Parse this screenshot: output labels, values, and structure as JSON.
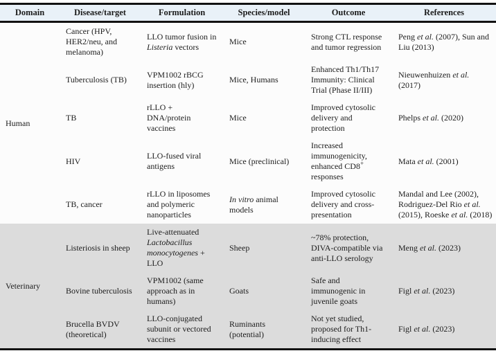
{
  "colors": {
    "header_bg": "#e9f1f8",
    "human_section_bg": "#fcfcfc",
    "veterinary_section_bg": "#dcdcdc",
    "border": "#121212",
    "text": "#1c1c1c"
  },
  "table": {
    "headers": [
      "Domain",
      "Disease/target",
      "Formulation",
      "Species/model",
      "Outcome",
      "References"
    ],
    "sections": [
      {
        "domain": "Human",
        "rows": [
          {
            "disease": [
              {
                "t": "Cancer (HPV, HER2/neu, and melanoma)"
              }
            ],
            "formulation": [
              {
                "t": "LLO tumor fusion in "
              },
              {
                "t": "Listeria",
                "i": true
              },
              {
                "t": " vectors"
              }
            ],
            "species": [
              {
                "t": "Mice"
              }
            ],
            "outcome": [
              {
                "t": "Strong CTL response and tumor regression"
              }
            ],
            "references": [
              {
                "t": "Peng "
              },
              {
                "t": "et al.",
                "i": true
              },
              {
                "t": " (2007), Sun and Liu (2013)"
              }
            ]
          },
          {
            "disease": [
              {
                "t": "Tuberculosis (TB)"
              }
            ],
            "formulation": [
              {
                "t": "VPM1002 rBCG insertion (hly)"
              }
            ],
            "species": [
              {
                "t": "Mice, Humans"
              }
            ],
            "outcome": [
              {
                "t": "Enhanced Th1/Th17 Immunity: Clinical Trial (Phase II/III)"
              }
            ],
            "references": [
              {
                "t": "Nieuwenhuizen "
              },
              {
                "t": "et al.",
                "i": true
              },
              {
                "t": " (2017)"
              }
            ]
          },
          {
            "disease": [
              {
                "t": "TB"
              }
            ],
            "formulation": [
              {
                "t": "rLLO + DNA/protein vaccines"
              }
            ],
            "species": [
              {
                "t": "Mice"
              }
            ],
            "outcome": [
              {
                "t": "Improved cytosolic delivery and protection"
              }
            ],
            "references": [
              {
                "t": "Phelps "
              },
              {
                "t": "et al.",
                "i": true
              },
              {
                "t": " (2020)"
              }
            ]
          },
          {
            "disease": [
              {
                "t": "HIV"
              }
            ],
            "formulation": [
              {
                "t": "LLO-fused viral antigens"
              }
            ],
            "species": [
              {
                "t": "Mice (preclinical)"
              }
            ],
            "outcome": [
              {
                "t": "Increased immunogenicity, enhanced CD8"
              },
              {
                "t": "+",
                "sup": true
              },
              {
                "t": " responses"
              }
            ],
            "references": [
              {
                "t": "Mata "
              },
              {
                "t": "et al.",
                "i": true
              },
              {
                "t": " (2001)"
              }
            ]
          },
          {
            "disease": [
              {
                "t": "TB, cancer"
              }
            ],
            "formulation": [
              {
                "t": "rLLO in liposomes and polymeric nanoparticles"
              }
            ],
            "species": [
              {
                "t": "In vitro",
                "i": true
              },
              {
                "t": " animal models"
              }
            ],
            "outcome": [
              {
                "t": "Improved cytosolic delivery and cross-presentation"
              }
            ],
            "references": [
              {
                "t": "Mandal and Lee (2002), Rodriguez-Del Rio "
              },
              {
                "t": "et al.",
                "i": true
              },
              {
                "t": " (2015), Roeske "
              },
              {
                "t": "et al.",
                "i": true
              },
              {
                "t": " (2018)"
              }
            ]
          }
        ]
      },
      {
        "domain": "Veterinary",
        "rows": [
          {
            "disease": [
              {
                "t": "Listeriosis in sheep"
              }
            ],
            "formulation": [
              {
                "t": "Live-attenuated "
              },
              {
                "t": "Lactobacillus monocytogenes",
                "i": true
              },
              {
                "t": " + LLO"
              }
            ],
            "species": [
              {
                "t": "Sheep"
              }
            ],
            "outcome": [
              {
                "t": "~78% protection, DIVA-compatible via anti-LLO serology"
              }
            ],
            "references": [
              {
                "t": "Meng "
              },
              {
                "t": "et al.",
                "i": true
              },
              {
                "t": " (2023)"
              }
            ]
          },
          {
            "disease": [
              {
                "t": "Bovine tuberculosis"
              }
            ],
            "formulation": [
              {
                "t": "VPM1002 (same approach as in humans)"
              }
            ],
            "species": [
              {
                "t": "Goats"
              }
            ],
            "outcome": [
              {
                "t": "Safe and immunogenic in juvenile goats"
              }
            ],
            "references": [
              {
                "t": "Figl "
              },
              {
                "t": "et al.",
                "i": true
              },
              {
                "t": " (2023)"
              }
            ]
          },
          {
            "disease": [
              {
                "t": "Brucella BVDV (theoretical)"
              }
            ],
            "formulation": [
              {
                "t": "LLO-conjugated subunit or vectored vaccines"
              }
            ],
            "species": [
              {
                "t": "Ruminants (potential)"
              }
            ],
            "outcome": [
              {
                "t": "Not yet studied, proposed for Th1-inducing effect"
              }
            ],
            "references": [
              {
                "t": "Figl "
              },
              {
                "t": "et al.",
                "i": true
              },
              {
                "t": " (2023)"
              }
            ]
          }
        ]
      }
    ]
  }
}
